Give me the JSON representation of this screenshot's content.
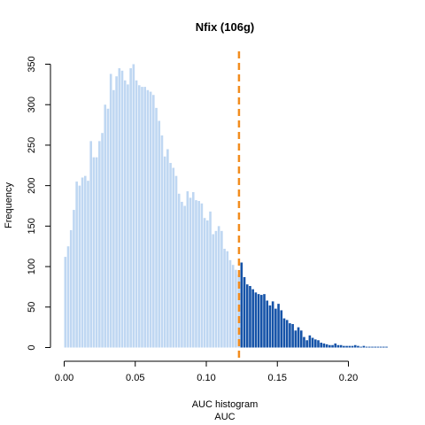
{
  "chart_data": {
    "type": "bar",
    "title": "Nfix (106g)",
    "xlabel_line1": "AUC histogram",
    "xlabel_line2": "AUC",
    "ylabel": "Frequency",
    "xlim": [
      0.0,
      0.23
    ],
    "ylim": [
      0,
      350
    ],
    "x_ticks": [
      0.0,
      0.05,
      0.1,
      0.15,
      0.2
    ],
    "x_tick_labels": [
      "0.00",
      "0.05",
      "0.10",
      "0.15",
      "0.20"
    ],
    "y_ticks": [
      0,
      50,
      100,
      150,
      200,
      250,
      300,
      350
    ],
    "y_tick_labels": [
      "0",
      "50",
      "100",
      "150",
      "200",
      "250",
      "300",
      "350"
    ],
    "bin_width": 0.002,
    "bin_start": 0.0,
    "threshold": 0.123,
    "colors": {
      "below_threshold": "#bfd7f2",
      "above_threshold": "#1553a8",
      "threshold_line": "#f28c1e"
    },
    "grid": false,
    "legend": "none",
    "values": [
      112,
      125,
      145,
      170,
      205,
      200,
      210,
      212,
      206,
      255,
      235,
      235,
      255,
      265,
      300,
      295,
      338,
      318,
      335,
      345,
      342,
      330,
      325,
      345,
      350,
      330,
      324,
      322,
      322,
      318,
      316,
      312,
      296,
      280,
      262,
      236,
      245,
      228,
      222,
      212,
      190,
      180,
      175,
      193,
      185,
      192,
      182,
      181,
      178,
      160,
      157,
      168,
      140,
      144,
      150,
      144,
      122,
      119,
      108,
      102,
      96,
      90,
      105,
      87,
      78,
      76,
      72,
      68,
      66,
      65,
      66,
      58,
      52,
      57,
      48,
      54,
      46,
      36,
      34,
      30,
      29,
      21,
      25,
      21,
      13,
      9,
      15,
      12,
      10,
      9,
      6,
      5,
      4,
      3,
      3,
      5,
      3,
      3,
      2,
      2,
      2,
      2,
      3,
      2,
      1,
      2,
      1,
      1,
      1,
      1,
      1,
      1,
      1,
      1
    ]
  }
}
